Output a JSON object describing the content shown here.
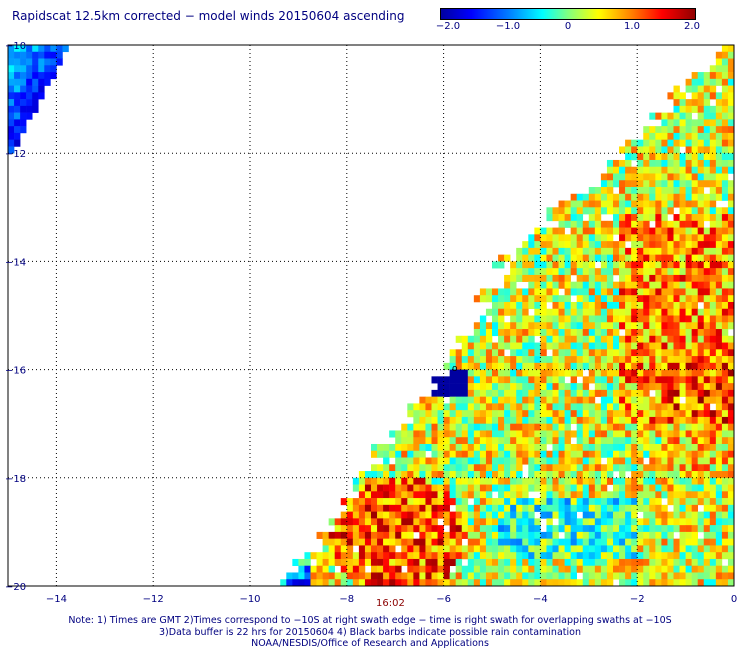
{
  "title": "Rapidscat 12.5km corrected − model winds 20150604 ascending",
  "colorbar": {
    "ticks": [
      "−2.0",
      "−1.0",
      "0",
      "1.0",
      "2.0"
    ],
    "range": [
      -2.0,
      2.0
    ],
    "colors": [
      "#0000a0",
      "#0000ff",
      "#0080ff",
      "#00ffff",
      "#80ff80",
      "#ffff00",
      "#ff8000",
      "#ff0000",
      "#900000"
    ]
  },
  "chart_data": {
    "type": "heatmap",
    "title": "Rapidscat 12.5km corrected − model winds 20150604 ascending",
    "xlim": [
      -15,
      0
    ],
    "ylim": [
      -20,
      -10
    ],
    "x_ticks": [
      "−14",
      "−12",
      "−10",
      "−8",
      "−6",
      "−4",
      "−2",
      "0"
    ],
    "y_ticks": [
      "−10",
      "−12",
      "−14",
      "−16",
      "−18",
      "−20"
    ],
    "grid": true,
    "value_range": [
      -2.0,
      2.0
    ],
    "swath_main_left_edge": [
      [
        -0.3,
        -10.0
      ],
      [
        -2.4,
        -12.0
      ],
      [
        -4.8,
        -14.0
      ],
      [
        -6.0,
        -16.0
      ],
      [
        -7.8,
        -18.0
      ],
      [
        -9.3,
        -20.0
      ]
    ],
    "swath_corner_region": {
      "x": [
        -15.0,
        -13.8
      ],
      "y": [
        -12.0,
        -10.0
      ]
    },
    "tendency": "mostly −0.5 to +1.5, warmer near (-7,-19) and (-2,-14) to (0,-16); negative patches near (-6,-16.2) and (-9.5,-20)",
    "time_labels": [
      "16:02"
    ]
  },
  "notes": [
    "Note: 1) Times are GMT 2)Times correspond to −10S at right swath edge − time is right swath for overlapping swaths at −10S",
    "3)Data buffer is 22 hrs for 20150604 4) Black barbs indicate possible rain contamination",
    "NOAA/NESDIS/Office of Research and Applications"
  ]
}
